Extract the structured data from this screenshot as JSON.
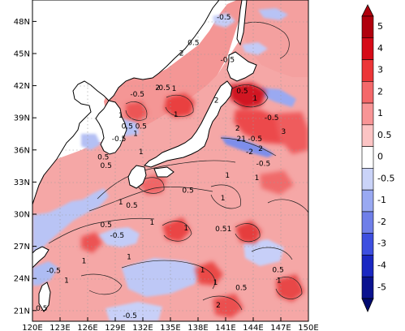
{
  "map": {
    "lon_ticks": [
      "120E",
      "123E",
      "126E",
      "129E",
      "132E",
      "135E",
      "138E",
      "141E",
      "144E",
      "147E",
      "150E"
    ],
    "lat_ticks": [
      "21N",
      "24N",
      "27N",
      "30N",
      "33N",
      "36N",
      "39N",
      "42N",
      "45N",
      "48N"
    ],
    "lon_range": [
      120,
      150
    ],
    "lat_range": [
      20,
      50
    ],
    "contour_labels": [
      {
        "text": "-0.5",
        "lon": 140.8,
        "lat": 48.2
      },
      {
        "text": "0.5",
        "lon": 137.5,
        "lat": 45.8
      },
      {
        "text": "2",
        "lon": 136.2,
        "lat": 44.8
      },
      {
        "text": "-0.5",
        "lon": 141.2,
        "lat": 44.2
      },
      {
        "text": "-0.5",
        "lon": 134.2,
        "lat": 41.6
      },
      {
        "text": "2",
        "lon": 133.6,
        "lat": 41.6
      },
      {
        "text": "-0.5",
        "lon": 131.4,
        "lat": 41.0
      },
      {
        "text": "1",
        "lon": 135.4,
        "lat": 41.5
      },
      {
        "text": "0.5",
        "lon": 142.8,
        "lat": 41.3
      },
      {
        "text": "1",
        "lon": 144.2,
        "lat": 40.6
      },
      {
        "text": "2",
        "lon": 140.0,
        "lat": 40.4
      },
      {
        "text": "-0.5",
        "lon": 146.0,
        "lat": 38.8
      },
      {
        "text": "1",
        "lon": 129.6,
        "lat": 39.0
      },
      {
        "text": "1",
        "lon": 135.6,
        "lat": 39.1
      },
      {
        "text": "0.5",
        "lon": 130.3,
        "lat": 38.0
      },
      {
        "text": "0.5",
        "lon": 131.8,
        "lat": 38.0
      },
      {
        "text": "2",
        "lon": 142.3,
        "lat": 37.8
      },
      {
        "text": "3",
        "lon": 147.3,
        "lat": 37.5
      },
      {
        "text": "-0.5",
        "lon": 129.4,
        "lat": 36.8
      },
      {
        "text": "1",
        "lon": 131.2,
        "lat": 37.3
      },
      {
        "text": "21",
        "lon": 142.7,
        "lat": 36.8
      },
      {
        "text": "-0.5",
        "lon": 144.2,
        "lat": 36.8
      },
      {
        "text": "2",
        "lon": 144.8,
        "lat": 35.9
      },
      {
        "text": "-2",
        "lon": 143.6,
        "lat": 35.6
      },
      {
        "text": "1",
        "lon": 131.8,
        "lat": 35.6
      },
      {
        "text": "0.5",
        "lon": 127.7,
        "lat": 35.1
      },
      {
        "text": "0.5",
        "lon": 128.0,
        "lat": 34.3
      },
      {
        "text": "-0.5",
        "lon": 145.1,
        "lat": 34.5
      },
      {
        "text": "1",
        "lon": 141.2,
        "lat": 33.4
      },
      {
        "text": "1",
        "lon": 144.4,
        "lat": 33.2
      },
      {
        "text": "0.5",
        "lon": 136.9,
        "lat": 32.0
      },
      {
        "text": "1",
        "lon": 140.7,
        "lat": 31.3
      },
      {
        "text": "1",
        "lon": 129.6,
        "lat": 30.9
      },
      {
        "text": "0.5",
        "lon": 130.8,
        "lat": 30.6
      },
      {
        "text": "0.5",
        "lon": 128.0,
        "lat": 28.8
      },
      {
        "text": "1",
        "lon": 133.0,
        "lat": 29.0
      },
      {
        "text": "1",
        "lon": 136.7,
        "lat": 28.5
      },
      {
        "text": "0.5",
        "lon": 140.5,
        "lat": 28.4
      },
      {
        "text": "1",
        "lon": 141.4,
        "lat": 28.4
      },
      {
        "text": "-0.5",
        "lon": 129.2,
        "lat": 27.8
      },
      {
        "text": "1",
        "lon": 125.6,
        "lat": 25.4
      },
      {
        "text": "1",
        "lon": 130.5,
        "lat": 25.8
      },
      {
        "text": "-0.5",
        "lon": 122.3,
        "lat": 24.5
      },
      {
        "text": "1",
        "lon": 123.7,
        "lat": 23.6
      },
      {
        "text": "1",
        "lon": 139.9,
        "lat": 23.4
      },
      {
        "text": "0.5",
        "lon": 146.7,
        "lat": 24.6
      },
      {
        "text": "1",
        "lon": 138.5,
        "lat": 24.6
      },
      {
        "text": "1",
        "lon": 146.8,
        "lat": 23.6
      },
      {
        "text": "0.5",
        "lon": 142.7,
        "lat": 22.9
      },
      {
        "text": "2",
        "lon": 140.2,
        "lat": 21.3
      },
      {
        "text": "0.5",
        "lon": 121.0,
        "lat": 21.0
      },
      {
        "text": "-0.5",
        "lon": 130.6,
        "lat": 20.3
      }
    ]
  },
  "colorbar": {
    "labels": [
      "5",
      "4",
      "3",
      "2",
      "1",
      "0.5",
      "0",
      "-0.5",
      "-1",
      "-2",
      "-3",
      "-4",
      "-5"
    ],
    "colors": [
      "#b0000d",
      "#d60a18",
      "#ec3538",
      "#f4686a",
      "#f89596",
      "#fcc4c4",
      "#ffffff",
      "#cad3f8",
      "#99a9f2",
      "#6f7fe9",
      "#3d4fe0",
      "#1a27c2",
      "#0a128f"
    ]
  }
}
